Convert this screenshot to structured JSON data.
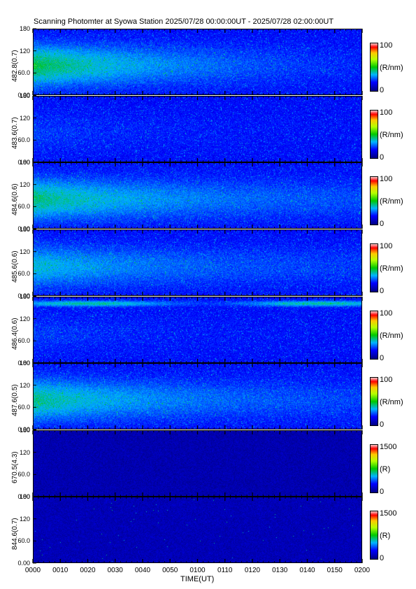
{
  "title": "Scanning Photomter at Syowa Station 2025/07/28 00:00:00UT - 2025/07/28 02:00:00UT",
  "chart_data": {
    "type": "heatmap",
    "xlabel": "TIME(UT)",
    "x_tick_labels": [
      "0000",
      "0010",
      "0020",
      "0030",
      "0040",
      "0050",
      "0100",
      "0110",
      "0120",
      "0130",
      "0140",
      "0150",
      "0200"
    ],
    "xlim": [
      "00:00",
      "02:00"
    ],
    "y_tick_labels": [
      "0.00",
      "60.0",
      "120",
      "180"
    ],
    "ylim": [
      0,
      180
    ],
    "panels": [
      {
        "ylabel": "482.8(0.7)",
        "cbar_unit": "(R/nm)",
        "cbar_min": "0",
        "cbar_max": "100",
        "vmax": 100,
        "structure": "diffuse green emission, strongest early (0000-0040) at 40-120"
      },
      {
        "ylabel": "483.6(0.7)",
        "cbar_unit": "(R/nm)",
        "cbar_min": "0",
        "cbar_max": "100",
        "vmax": 100,
        "structure": "weak, mostly blue background"
      },
      {
        "ylabel": "484.6(0.6)",
        "cbar_unit": "(R/nm)",
        "cbar_min": "0",
        "cbar_max": "100",
        "vmax": 100,
        "structure": "diffuse green emission, strongest early"
      },
      {
        "ylabel": "485.6(0.6)",
        "cbar_unit": "(R/nm)",
        "cbar_min": "0",
        "cbar_max": "100",
        "vmax": 100,
        "structure": "scattered green emission, decreasing with time"
      },
      {
        "ylabel": "486.4(0.6)",
        "cbar_unit": "(R/nm)",
        "cbar_min": "0",
        "cbar_max": "100",
        "vmax": 100,
        "structure": "persistent bright band near 160-170 across all times"
      },
      {
        "ylabel": "487.6(0.5)",
        "cbar_unit": "(R/nm)",
        "cbar_min": "0",
        "cbar_max": "100",
        "vmax": 100,
        "structure": "diffuse green emission early, fading later"
      },
      {
        "ylabel": "670.5(4.3)",
        "cbar_unit": "(R)",
        "cbar_min": "0",
        "cbar_max": "1500",
        "vmax": 1500,
        "structure": "dark blue, near zero"
      },
      {
        "ylabel": "844.6(0.7)",
        "cbar_unit": "(R)",
        "cbar_min": "0",
        "cbar_max": "1500",
        "vmax": 1500,
        "structure": "dark blue, near zero with sparse points"
      }
    ]
  }
}
